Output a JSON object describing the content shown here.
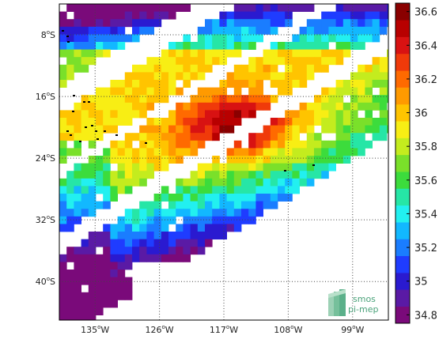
{
  "map": {
    "lat_labels": [
      {
        "lat": -8,
        "deg": "8",
        "suffix": "S"
      },
      {
        "lat": -16,
        "deg": "16",
        "suffix": "S"
      },
      {
        "lat": -24,
        "deg": "24",
        "suffix": "S"
      },
      {
        "lat": -32,
        "deg": "32",
        "suffix": "S"
      },
      {
        "lat": -40,
        "deg": "40",
        "suffix": "S"
      }
    ],
    "lon_labels": [
      {
        "lon": -135,
        "deg": "135",
        "suffix": "W"
      },
      {
        "lon": -126,
        "deg": "126",
        "suffix": "W"
      },
      {
        "lon": -117,
        "deg": "117",
        "suffix": "W"
      },
      {
        "lon": -108,
        "deg": "108",
        "suffix": "W"
      },
      {
        "lon": -99,
        "deg": "99",
        "suffix": "W"
      }
    ],
    "degree_symbol": "o",
    "extent": {
      "lon": [
        -140,
        -94
      ],
      "lat": [
        -45,
        -4
      ]
    },
    "gridlines": "dotted",
    "colors": {
      "land": "#000000",
      "grid": "#444444"
    }
  },
  "colorbar": {
    "ticks": [
      "36.6",
      "36.4",
      "36.2",
      "36",
      "35.8",
      "35.6",
      "35.4",
      "35.2",
      "35",
      "34.8"
    ],
    "range": [
      34.75,
      36.65
    ],
    "colors": [
      "#7a0a7a",
      "#5a1aa5",
      "#2a1ad0",
      "#1f3cff",
      "#1a7dff",
      "#12b8ff",
      "#22f0f0",
      "#26e6a6",
      "#3cdc3c",
      "#7ae02a",
      "#c4ec1e",
      "#f8ee14",
      "#ffc400",
      "#ff9a00",
      "#ff6a00",
      "#f03a0a",
      "#d81212",
      "#b80000",
      "#8a0000"
    ]
  },
  "logo": {
    "line1": "smos",
    "line2": "pi-mep"
  }
}
